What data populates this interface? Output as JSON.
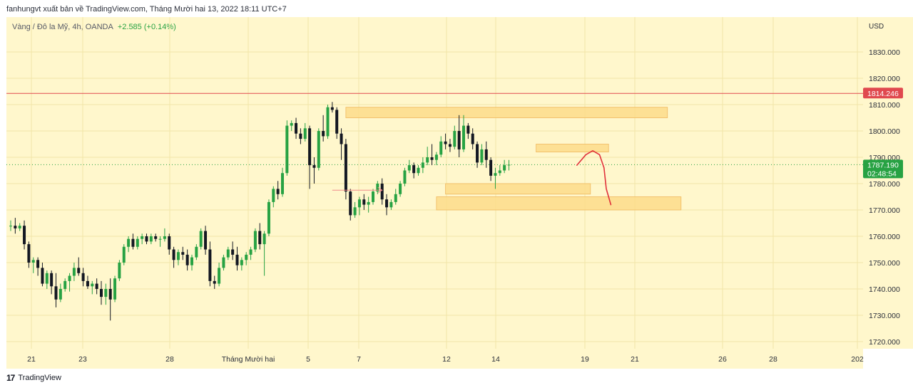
{
  "header": {
    "publish_line": "fanhungvt xuất bản về TradingView.com, Tháng Mười hai 13, 2022 18:11 UTC+7"
  },
  "legend": {
    "symbol": "Vàng / Đô la Mỹ, 4h, OANDA",
    "change": "+2.585 (+0.14%)"
  },
  "footer": {
    "brand": "TradingView",
    "logo_glyph": "17"
  },
  "colors": {
    "background": "#fff7cc",
    "up": "#27a243",
    "down": "#131722",
    "zone": "#fddc8a",
    "hline": "#e0494f",
    "price_label": "#27a243"
  },
  "chart_data": {
    "type": "candlestick",
    "title": "",
    "ylabel": "",
    "currency": "USD",
    "ylim": [
      1716,
      1842
    ],
    "y_ticks": [
      "1720.000",
      "1730.000",
      "1740.000",
      "1750.000",
      "1760.000",
      "1770.000",
      "1780.000",
      "1790.000",
      "1800.000",
      "1810.000",
      "1820.000",
      "1830.000"
    ],
    "x_tick_labels": [
      "21",
      "23",
      "28",
      "Tháng Mười hai",
      "5",
      "7",
      "12",
      "14",
      "19",
      "21",
      "26",
      "28",
      "202"
    ],
    "horizontal_line": {
      "value": 1814.246,
      "label": "1814.246"
    },
    "last_price": {
      "value": 1787.19,
      "label": "1787.190",
      "countdown": "02:48:54"
    },
    "zones": [
      {
        "from_bar": 74,
        "to_bar": 145,
        "low": 1805,
        "high": 1809
      },
      {
        "from_bar": 116,
        "to_bar": 132,
        "low": 1792,
        "high": 1795
      },
      {
        "from_bar": 96,
        "to_bar": 128,
        "low": 1776,
        "high": 1780
      },
      {
        "from_bar": 94,
        "to_bar": 148,
        "low": 1770,
        "high": 1775
      }
    ],
    "arrow": {
      "from_bar": 71,
      "to_bar": 82,
      "value": 1777.5
    },
    "projection": [
      [
        125,
        1787
      ],
      [
        127,
        1791
      ],
      [
        128.5,
        1792.5
      ],
      [
        130,
        1791
      ],
      [
        131,
        1786
      ],
      [
        131.5,
        1778
      ],
      [
        132.5,
        1772
      ]
    ],
    "ohlc": [
      [
        1764,
        1766,
        1762,
        1764
      ],
      [
        1764,
        1767,
        1761,
        1763
      ],
      [
        1763,
        1765,
        1762,
        1764
      ],
      [
        1764,
        1766,
        1755,
        1757
      ],
      [
        1757,
        1758,
        1748,
        1750
      ],
      [
        1750,
        1752,
        1746,
        1751
      ],
      [
        1751,
        1752,
        1745,
        1748
      ],
      [
        1748,
        1750,
        1741,
        1742
      ],
      [
        1742,
        1747,
        1740,
        1746
      ],
      [
        1746,
        1747,
        1738,
        1741
      ],
      [
        1741,
        1746,
        1733,
        1736
      ],
      [
        1736,
        1742,
        1735,
        1740
      ],
      [
        1740,
        1744,
        1739,
        1743
      ],
      [
        1743,
        1746,
        1739,
        1745
      ],
      [
        1745,
        1750,
        1743,
        1748
      ],
      [
        1748,
        1752,
        1745,
        1746
      ],
      [
        1746,
        1748,
        1741,
        1743
      ],
      [
        1743,
        1745,
        1740,
        1741
      ],
      [
        1741,
        1743,
        1738,
        1742
      ],
      [
        1742,
        1744,
        1738,
        1740
      ],
      [
        1740,
        1743,
        1734,
        1737
      ],
      [
        1737,
        1742,
        1734,
        1740
      ],
      [
        1740,
        1744,
        1728,
        1736
      ],
      [
        1736,
        1745,
        1735,
        1744
      ],
      [
        1744,
        1751,
        1743,
        1750
      ],
      [
        1750,
        1757,
        1749,
        1756
      ],
      [
        1756,
        1760,
        1754,
        1759
      ],
      [
        1759,
        1761,
        1755,
        1756
      ],
      [
        1756,
        1760,
        1755,
        1759
      ],
      [
        1759,
        1761,
        1757,
        1760
      ],
      [
        1760,
        1761,
        1757,
        1758
      ],
      [
        1758,
        1761,
        1757,
        1760
      ],
      [
        1760,
        1761,
        1758,
        1759
      ],
      [
        1759,
        1760,
        1756,
        1759
      ],
      [
        1759,
        1763,
        1758,
        1760
      ],
      [
        1760,
        1761,
        1753,
        1755
      ],
      [
        1755,
        1756,
        1748,
        1751
      ],
      [
        1751,
        1755,
        1749,
        1754
      ],
      [
        1754,
        1756,
        1751,
        1753
      ],
      [
        1753,
        1755,
        1747,
        1749
      ],
      [
        1749,
        1753,
        1747,
        1752
      ],
      [
        1752,
        1757,
        1751,
        1756
      ],
      [
        1756,
        1763,
        1755,
        1762
      ],
      [
        1762,
        1764,
        1753,
        1755
      ],
      [
        1755,
        1758,
        1741,
        1743
      ],
      [
        1743,
        1745,
        1740,
        1742
      ],
      [
        1742,
        1750,
        1741,
        1748
      ],
      [
        1748,
        1753,
        1747,
        1752
      ],
      [
        1752,
        1756,
        1751,
        1755
      ],
      [
        1755,
        1758,
        1751,
        1753
      ],
      [
        1753,
        1756,
        1747,
        1749
      ],
      [
        1749,
        1752,
        1747,
        1751
      ],
      [
        1751,
        1754,
        1749,
        1753
      ],
      [
        1753,
        1756,
        1751,
        1755
      ],
      [
        1755,
        1763,
        1754,
        1762
      ],
      [
        1762,
        1765,
        1755,
        1757
      ],
      [
        1757,
        1762,
        1745,
        1761
      ],
      [
        1761,
        1774,
        1760,
        1773
      ],
      [
        1773,
        1779,
        1771,
        1778
      ],
      [
        1778,
        1781,
        1774,
        1776
      ],
      [
        1776,
        1786,
        1775,
        1784
      ],
      [
        1784,
        1804,
        1783,
        1802
      ],
      [
        1802,
        1804,
        1800,
        1803
      ],
      [
        1803,
        1805,
        1797,
        1799
      ],
      [
        1799,
        1801,
        1795,
        1797
      ],
      [
        1797,
        1803,
        1796,
        1801
      ],
      [
        1801,
        1802,
        1778,
        1787
      ],
      [
        1787,
        1790,
        1780,
        1786
      ],
      [
        1786,
        1801,
        1785,
        1800
      ],
      [
        1800,
        1806,
        1796,
        1798
      ],
      [
        1798,
        1810,
        1797,
        1809
      ],
      [
        1809,
        1811,
        1807,
        1808
      ],
      [
        1808,
        1809,
        1797,
        1799
      ],
      [
        1799,
        1801,
        1789,
        1795
      ],
      [
        1795,
        1797,
        1774,
        1777
      ],
      [
        1777,
        1778,
        1766,
        1768
      ],
      [
        1768,
        1773,
        1767,
        1771
      ],
      [
        1771,
        1775,
        1768,
        1774
      ],
      [
        1774,
        1776,
        1770,
        1772
      ],
      [
        1772,
        1775,
        1769,
        1773
      ],
      [
        1773,
        1778,
        1772,
        1777
      ],
      [
        1777,
        1781,
        1776,
        1780
      ],
      [
        1780,
        1782,
        1772,
        1774
      ],
      [
        1774,
        1776,
        1768,
        1771
      ],
      [
        1771,
        1774,
        1770,
        1773
      ],
      [
        1773,
        1778,
        1772,
        1776
      ],
      [
        1776,
        1781,
        1775,
        1780
      ],
      [
        1780,
        1786,
        1779,
        1785
      ],
      [
        1785,
        1789,
        1784,
        1787
      ],
      [
        1787,
        1788,
        1782,
        1784
      ],
      [
        1784,
        1787,
        1783,
        1786
      ],
      [
        1786,
        1790,
        1784,
        1788
      ],
      [
        1788,
        1794,
        1787,
        1790
      ],
      [
        1790,
        1795,
        1787,
        1789
      ],
      [
        1789,
        1792,
        1787,
        1791
      ],
      [
        1791,
        1798,
        1790,
        1796
      ],
      [
        1796,
        1799,
        1793,
        1795
      ],
      [
        1795,
        1797,
        1792,
        1794
      ],
      [
        1794,
        1802,
        1793,
        1800
      ],
      [
        1800,
        1806,
        1790,
        1793
      ],
      [
        1793,
        1806,
        1792,
        1802
      ],
      [
        1802,
        1803,
        1797,
        1799
      ],
      [
        1799,
        1801,
        1793,
        1795
      ],
      [
        1795,
        1796,
        1786,
        1788
      ],
      [
        1788,
        1795,
        1787,
        1793
      ],
      [
        1793,
        1796,
        1786,
        1789
      ],
      [
        1789,
        1790,
        1781,
        1783
      ],
      [
        1783,
        1786,
        1778,
        1784
      ],
      [
        1784,
        1787,
        1783,
        1785
      ],
      [
        1785,
        1789,
        1784,
        1787
      ],
      [
        1787,
        1789,
        1785,
        1787.19
      ]
    ]
  }
}
